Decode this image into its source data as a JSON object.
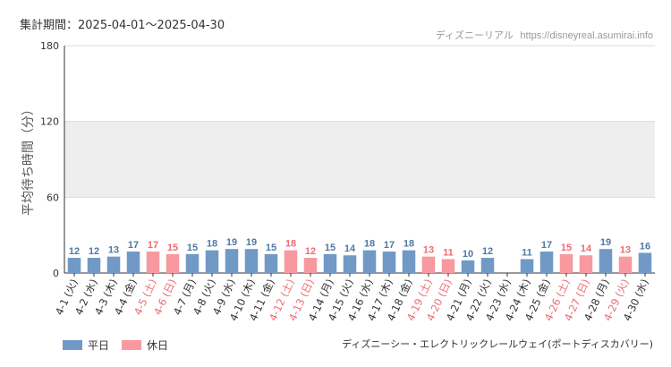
{
  "header": {
    "period_label": "集計期間：2025-04-01～2025-04-30",
    "site_name": "ディズニーリアル",
    "site_url": "https://disneyreal.asumirai.info"
  },
  "footer": {
    "attraction_name": "ディズニーシー・エレクトリックレールウェイ(ポートディスカバリー)"
  },
  "colors": {
    "weekday": "#7199c6",
    "holiday": "#f7999e",
    "weekday_label": "#4e79a7",
    "holiday_label": "#ef6b73",
    "band": "#eeeeee",
    "grid": "#dddddd",
    "axis": "#333333"
  },
  "chart_data": {
    "type": "bar",
    "ylabel": "平均待ち時間（分）",
    "ylim": [
      0,
      180
    ],
    "yticks": [
      0,
      60,
      120,
      180
    ],
    "band": [
      60,
      120
    ],
    "categories": [
      "4-1 (火)",
      "4-2 (水)",
      "4-3 (木)",
      "4-4 (金)",
      "4-5 (土)",
      "4-6 (日)",
      "4-7 (月)",
      "4-8 (火)",
      "4-9 (水)",
      "4-10 (木)",
      "4-11 (金)",
      "4-12 (土)",
      "4-13 (日)",
      "4-14 (月)",
      "4-15 (火)",
      "4-16 (水)",
      "4-17 (木)",
      "4-18 (金)",
      "4-19 (土)",
      "4-20 (日)",
      "4-21 (月)",
      "4-22 (火)",
      "4-23 (水)",
      "4-24 (木)",
      "4-25 (金)",
      "4-26 (土)",
      "4-27 (日)",
      "4-28 (月)",
      "4-29 (火)",
      "4-30 (水)"
    ],
    "values": [
      12,
      12,
      13,
      17,
      17,
      15,
      15,
      18,
      19,
      19,
      15,
      18,
      12,
      15,
      14,
      18,
      17,
      18,
      13,
      11,
      10,
      12,
      null,
      11,
      17,
      15,
      14,
      19,
      13,
      16
    ],
    "day_type": [
      "weekday",
      "weekday",
      "weekday",
      "weekday",
      "holiday",
      "holiday",
      "weekday",
      "weekday",
      "weekday",
      "weekday",
      "weekday",
      "holiday",
      "holiday",
      "weekday",
      "weekday",
      "weekday",
      "weekday",
      "weekday",
      "holiday",
      "holiday",
      "weekday",
      "weekday",
      "weekday",
      "weekday",
      "weekday",
      "holiday",
      "holiday",
      "weekday",
      "holiday",
      "weekday"
    ],
    "legend": [
      {
        "key": "weekday",
        "label": "平日"
      },
      {
        "key": "holiday",
        "label": "休日"
      }
    ]
  }
}
